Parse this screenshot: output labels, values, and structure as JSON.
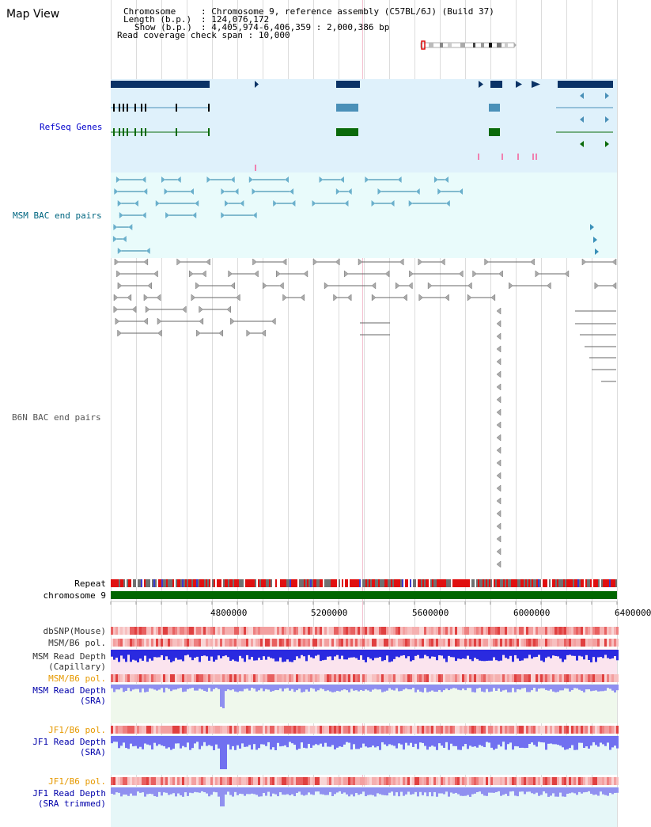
{
  "title": "Map View",
  "header": {
    "chromosome_label": "Chromosome",
    "chromosome_value": "Chromosome 9, reference assembly (C57BL/6J) (Build 37)",
    "length_label": "Length (b.p.)",
    "length_value": "124,076,172",
    "show_label": "Show (b.p.)",
    "show_value": "4,405,974-6,406,359 : 2,000,386 bp",
    "span_label": "Read coverage check span",
    "span_value": "10,000"
  },
  "tracks": {
    "refseq": "RefSeq Genes",
    "msm_bac": "MSM BAC end pairs",
    "b6n_bac": "B6N BAC end pairs",
    "repeat": "Repeat",
    "chromosome": "chromosome 9",
    "dbsnp": "dbSNP(Mouse)",
    "msm_b6_pol_1": "MSM/B6 pol.",
    "msm_read_depth_cap_1": "MSM Read Depth",
    "msm_read_depth_cap_2": "(Capillary)",
    "msm_b6_pol_2": "MSM/B6 pol.",
    "msm_read_depth_sra_1": "MSM Read Depth",
    "msm_read_depth_sra_2": "(SRA)",
    "jf1_b6_pol_1": "JF1/B6 pol.",
    "jf1_read_depth_sra_1": "JF1 Read Depth",
    "jf1_read_depth_sra_2": "(SRA)",
    "jf1_b6_pol_2": "JF1/B6 pol.",
    "jf1_read_depth_trim_1": "JF1 Read Depth",
    "jf1_read_depth_trim_2": "(SRA trimmed)"
  },
  "axis": {
    "ticks": [
      "4800000",
      "5200000",
      "5600000",
      "6000000",
      "6400000"
    ]
  },
  "colors": {
    "refseq_label": "#0000cc",
    "msm_label": "#006680",
    "b6n_label": "#555555",
    "orange_label": "#e69900",
    "blue_label": "#0000aa",
    "refseq_bg": "#dff1fb",
    "msm_bg": "#e9fbfb",
    "chrom_green": "#006600",
    "navy": "#003366",
    "teal": "#4a8fb3",
    "green": "#006600"
  }
}
